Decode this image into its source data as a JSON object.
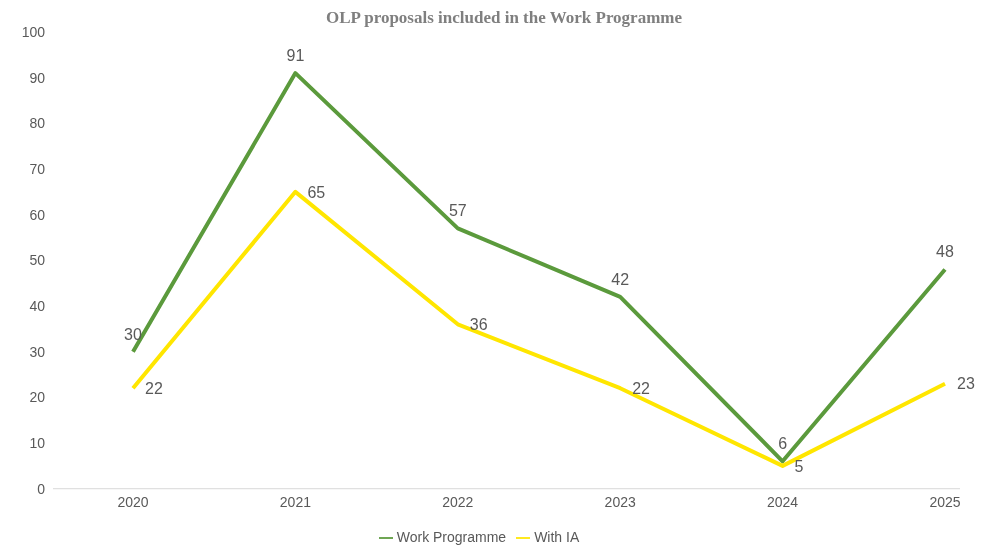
{
  "chart_data": {
    "type": "line",
    "title": "OLP proposals included in the Work Programme",
    "categories": [
      "2020",
      "2021",
      "2022",
      "2023",
      "2024",
      "2025"
    ],
    "series": [
      {
        "name": "Work Programme",
        "color": "#5b9a3c",
        "values": [
          30,
          91,
          57,
          42,
          6,
          48
        ]
      },
      {
        "name": "With IA",
        "color": "#ffe600",
        "values": [
          22,
          65,
          36,
          22,
          5,
          23
        ]
      }
    ],
    "ylim": [
      0,
      100
    ],
    "yticks": [
      0,
      10,
      20,
      30,
      40,
      50,
      60,
      70,
      80,
      90,
      100
    ],
    "grid": false,
    "legend": "bottom",
    "data_labels": true,
    "marker": "none",
    "line_style": "solid"
  }
}
